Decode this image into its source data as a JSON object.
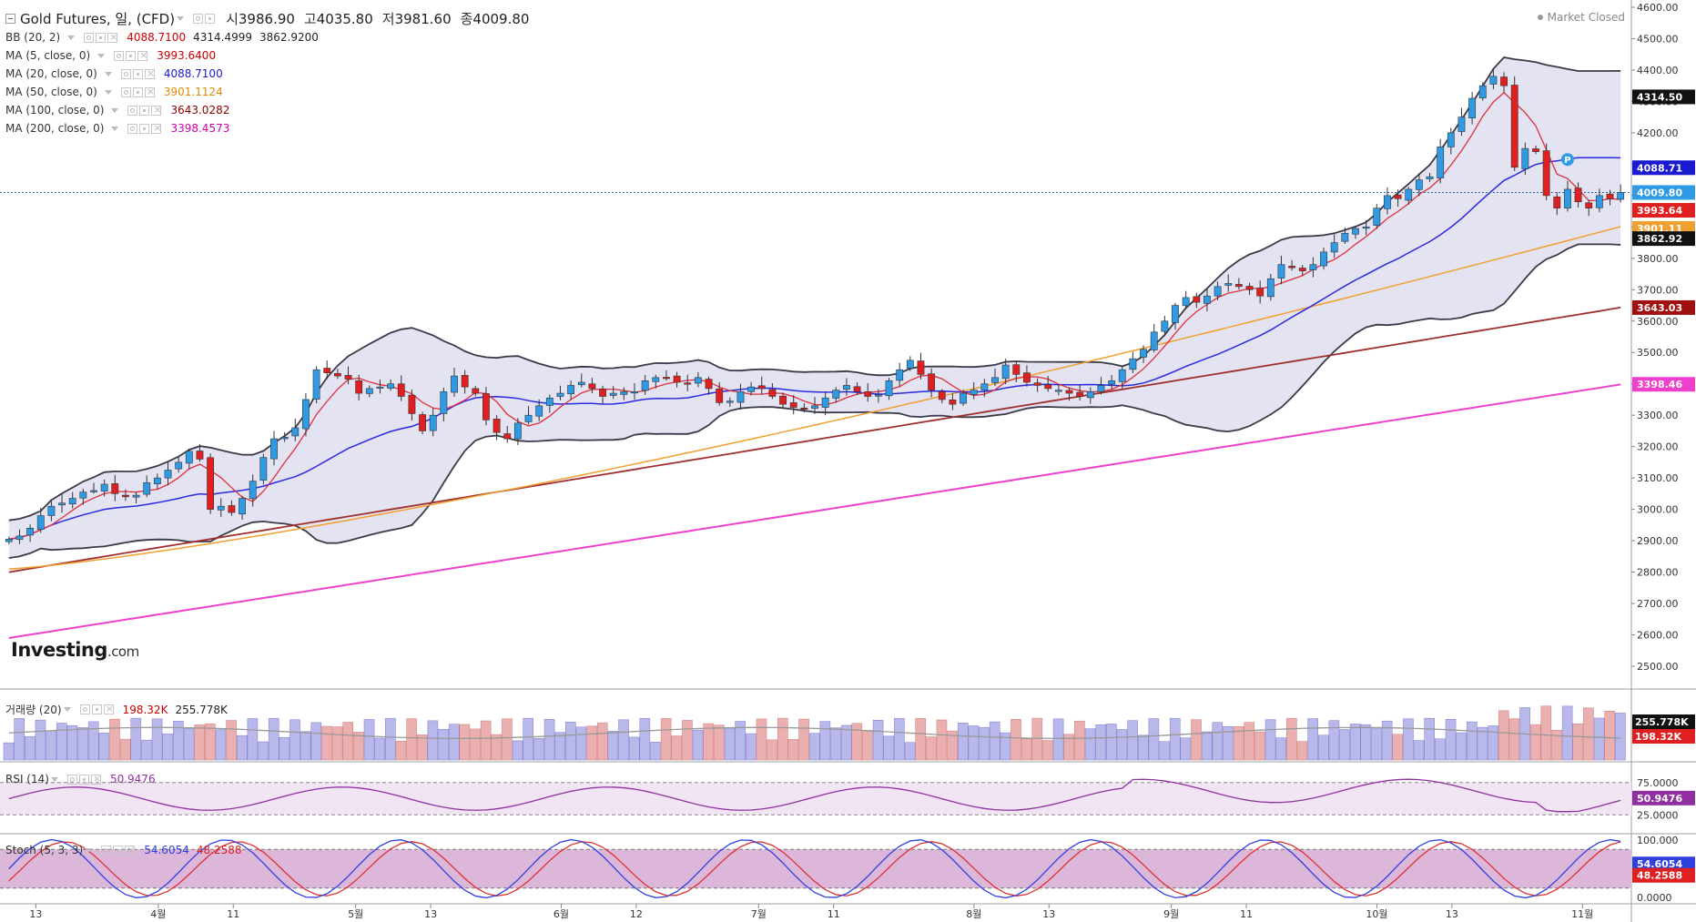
{
  "header": {
    "title": "Gold Futures, 일, (CFD)",
    "open_label": "시",
    "open_value": "3986.90",
    "high_label": "고",
    "high_value": "4035.80",
    "low_label": "저",
    "low_value": "3981.60",
    "close_label": "종",
    "close_value": "4009.80",
    "market_status": "Market Closed"
  },
  "indicators": [
    {
      "name": "BB (20, 2)",
      "values": [
        "4088.7100",
        "4314.4999",
        "3862.9200"
      ],
      "colors": [
        "#cc0000",
        "#222222",
        "#222222"
      ]
    },
    {
      "name": "MA (5, close, 0)",
      "values": [
        "3993.6400"
      ],
      "colors": [
        "#cc0000"
      ]
    },
    {
      "name": "MA (20, close, 0)",
      "values": [
        "4088.7100"
      ],
      "colors": [
        "#1a1ad0"
      ]
    },
    {
      "name": "MA (50, close, 0)",
      "values": [
        "3901.1124"
      ],
      "colors": [
        "#e08a00"
      ]
    },
    {
      "name": "MA (100, close, 0)",
      "values": [
        "3643.0282"
      ],
      "colors": [
        "#8b0000"
      ]
    },
    {
      "name": "MA (200, close, 0)",
      "values": [
        "3398.4573"
      ],
      "colors": [
        "#cc00aa"
      ]
    }
  ],
  "volume_legend": {
    "name": "거래량 (20)",
    "value1": "198.32K",
    "value2": "255.778K"
  },
  "rsi_legend": {
    "name": "RSI (14)",
    "value": "50.9476"
  },
  "stoch_legend": {
    "name": "Stoch (5, 3, 3)",
    "value1": "54.6054",
    "value2": "48.2588"
  },
  "logo": {
    "brand": "Investing",
    "suffix": ".com"
  },
  "colors": {
    "up": "#2f9be5",
    "down": "#e02020",
    "bb_fill": "#e3e3f2",
    "bb_line": "#3a3a4a",
    "ma5": "#e0303a",
    "ma20": "#2a2ae0",
    "ma50": "#f0a030",
    "ma100": "#a03030",
    "ma200": "#ee40cc",
    "rsi": "#9030a0",
    "stoch_k": "#3040e0",
    "stoch_d": "#e03030"
  },
  "price_badges": [
    {
      "label": "4314.50",
      "bg": "#111111",
      "fg": "#ffffff"
    },
    {
      "label": "4088.71",
      "bg": "#1a1ad0",
      "fg": "#ffffff"
    },
    {
      "label": "4009.80",
      "bg": "#2f9be5",
      "fg": "#ffffff"
    },
    {
      "label": "3993.64",
      "bg": "#e02020",
      "fg": "#ffffff"
    },
    {
      "label": "3901.11",
      "bg": "#f0a030",
      "fg": "#ffffff"
    },
    {
      "label": "3862.92",
      "bg": "#111111",
      "fg": "#ffffff"
    },
    {
      "label": "3643.03",
      "bg": "#a01010",
      "fg": "#ffffff"
    },
    {
      "label": "3398.46",
      "bg": "#ee40cc",
      "fg": "#ffffff"
    }
  ],
  "volume_badges": [
    {
      "label": "255.778K",
      "bg": "#111111",
      "fg": "#ffffff"
    },
    {
      "label": "198.32K",
      "bg": "#e02020",
      "fg": "#ffffff"
    }
  ],
  "rsi_badge": {
    "label": "50.9476",
    "bg": "#9030a0",
    "fg": "#ffffff"
  },
  "stoch_badges": [
    {
      "label": "54.6054",
      "bg": "#3040e0",
      "fg": "#ffffff"
    },
    {
      "label": "48.2588",
      "bg": "#e02020",
      "fg": "#ffffff"
    }
  ],
  "chart_data": {
    "type": "candlestick",
    "y_ticks": [
      2500,
      2600,
      2700,
      2800,
      2900,
      3000,
      3100,
      3200,
      3300,
      3400,
      3500,
      3600,
      3700,
      3800,
      3900,
      4000,
      4100,
      4200,
      4300,
      4400,
      4500,
      4600
    ],
    "y_tick_labels": [
      "2500.00",
      "2600.00",
      "2700.00",
      "2800.00",
      "2900.00",
      "3000.00",
      "3100.00",
      "3200.00",
      "3300.00",
      "3400.00",
      "3500.00",
      "3600.00",
      "3700.00",
      "3800.00",
      "3900.00",
      "4000.00",
      "4100.00",
      "4200.00",
      "4300.00",
      "4400.00",
      "4500.00",
      "4600.00"
    ],
    "ylim": [
      2500,
      4600
    ],
    "rsi_ticks": [
      "75.0000",
      "25.0000"
    ],
    "stoch_ticks": [
      "100.000",
      "0.0000"
    ],
    "x_ticks": [
      {
        "label": "13",
        "frac": 0.022
      },
      {
        "label": "4월",
        "frac": 0.097
      },
      {
        "label": "11",
        "frac": 0.143
      },
      {
        "label": "5월",
        "frac": 0.218
      },
      {
        "label": "13",
        "frac": 0.264
      },
      {
        "label": "6월",
        "frac": 0.344
      },
      {
        "label": "12",
        "frac": 0.39
      },
      {
        "label": "7월",
        "frac": 0.465
      },
      {
        "label": "11",
        "frac": 0.511
      },
      {
        "label": "8월",
        "frac": 0.597
      },
      {
        "label": "13",
        "frac": 0.643
      },
      {
        "label": "9월",
        "frac": 0.718
      },
      {
        "label": "11",
        "frac": 0.764
      },
      {
        "label": "10월",
        "frac": 0.844
      },
      {
        "label": "13",
        "frac": 0.89
      },
      {
        "label": "11월",
        "frac": 0.97
      },
      {
        "label": "11",
        "frac": 0.975
      }
    ],
    "closes": [
      2905,
      2915,
      2940,
      2980,
      3010,
      3020,
      3035,
      3055,
      3060,
      3080,
      3050,
      3040,
      3045,
      3085,
      3100,
      3125,
      3150,
      3185,
      3160,
      3000,
      3010,
      2990,
      3035,
      3090,
      3165,
      3225,
      3230,
      3260,
      3350,
      3445,
      3435,
      3425,
      3415,
      3370,
      3385,
      3390,
      3400,
      3360,
      3305,
      3250,
      3300,
      3375,
      3425,
      3390,
      3370,
      3285,
      3245,
      3225,
      3275,
      3300,
      3330,
      3355,
      3370,
      3395,
      3405,
      3385,
      3360,
      3370,
      3375,
      3375,
      3410,
      3420,
      3420,
      3405,
      3400,
      3420,
      3385,
      3340,
      3345,
      3375,
      3390,
      3385,
      3360,
      3335,
      3325,
      3320,
      3330,
      3355,
      3380,
      3395,
      3375,
      3360,
      3365,
      3410,
      3445,
      3475,
      3430,
      3380,
      3350,
      3335,
      3370,
      3380,
      3400,
      3420,
      3460,
      3430,
      3405,
      3395,
      3385,
      3380,
      3370,
      3360,
      3375,
      3395,
      3410,
      3445,
      3480,
      3510,
      3565,
      3600,
      3650,
      3675,
      3660,
      3680,
      3710,
      3720,
      3710,
      3700,
      3680,
      3735,
      3780,
      3770,
      3760,
      3780,
      3820,
      3850,
      3880,
      3895,
      3900,
      3960,
      4000,
      3990,
      4020,
      4050,
      4060,
      4155,
      4200,
      4250,
      4310,
      4350,
      4380,
      4350,
      4090,
      4150,
      4140,
      4000,
      3960,
      4020,
      3980,
      3960,
      4000,
      3990,
      4010
    ],
    "volume_last": "198.32K",
    "volume_ma": "255.778K",
    "rsi_last": 50.9476,
    "stoch_k_last": 54.6054,
    "stoch_d_last": 48.2588
  }
}
